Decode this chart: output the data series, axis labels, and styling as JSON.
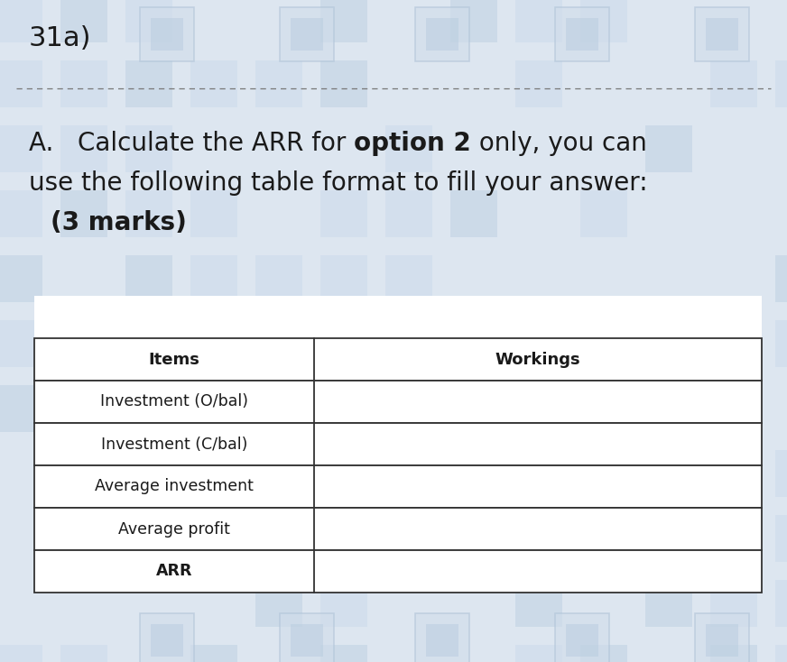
{
  "title_number": "31a)",
  "q_line1_pre": "A.   Calculate the ARR for ",
  "q_line1_bold": "option 2",
  "q_line1_post": " only, you can",
  "q_line2": "use the following table format to fill your answer:",
  "q_line3": "    (3 marks)",
  "table_headers": [
    "Items",
    "Workings"
  ],
  "table_rows": [
    [
      "Investment (O/bal)",
      ""
    ],
    [
      "Investment (C/bal)",
      ""
    ],
    [
      "Average investment",
      ""
    ],
    [
      "Average profit",
      ""
    ],
    [
      "ARR",
      ""
    ]
  ],
  "col_split": 0.385,
  "background_color": "#dde6f0",
  "white": "#ffffff",
  "text_color": "#1a1a1a",
  "border_color": "#333333",
  "dash_color": "#777777",
  "title_fontsize": 22,
  "question_fontsize": 20,
  "table_header_fontsize": 13,
  "table_body_fontsize": 12.5,
  "fig_width": 8.72,
  "fig_height": 7.34,
  "dpi": 100
}
